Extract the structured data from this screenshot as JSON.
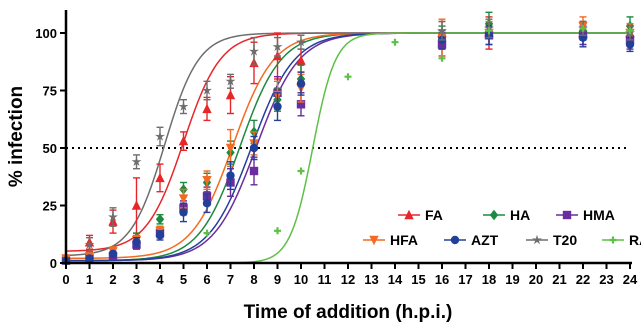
{
  "chart_data": {
    "type": "scatter",
    "xlabel": "Time of addition (h.p.i.)",
    "ylabel": "% infection",
    "xlim": [
      0,
      24
    ],
    "ylim": [
      0,
      110
    ],
    "xticks": [
      "0",
      "1",
      "2",
      "3",
      "4",
      "5",
      "6",
      "7",
      "8",
      "9",
      "10",
      "11",
      "12",
      "13",
      "14",
      "15",
      "16",
      "17",
      "18",
      "19",
      "20",
      "21",
      "22",
      "23",
      "24"
    ],
    "yticks": [
      "0",
      "25",
      "50",
      "75",
      "100"
    ],
    "reference_line": {
      "y": 50,
      "style": "dotted"
    },
    "legend_position": "bottom-right",
    "series": [
      {
        "name": "FA",
        "color": "#e8262a",
        "marker": "triangle-up",
        "ec50": 5.0,
        "hill": 0.55,
        "bottom": 5,
        "points": [
          {
            "x": 1,
            "y": 9,
            "err": 3
          },
          {
            "x": 2,
            "y": 18,
            "err": 5
          },
          {
            "x": 3,
            "y": 25,
            "err": 12
          },
          {
            "x": 4,
            "y": 37,
            "err": 6
          },
          {
            "x": 5,
            "y": 53,
            "err": 4
          },
          {
            "x": 6,
            "y": 67,
            "err": 5
          },
          {
            "x": 7,
            "y": 73,
            "err": 8
          },
          {
            "x": 8,
            "y": 87,
            "err": 9
          },
          {
            "x": 9,
            "y": 90,
            "err": 10
          },
          {
            "x": 10,
            "y": 88,
            "err": 5
          },
          {
            "x": 16,
            "y": 100,
            "err": 5
          },
          {
            "x": 18,
            "y": 100,
            "err": 7
          },
          {
            "x": 22,
            "y": 100,
            "err": 5
          },
          {
            "x": 24,
            "y": 100,
            "err": 4
          }
        ]
      },
      {
        "name": "HA",
        "color": "#1c8a3f",
        "marker": "diamond",
        "ec50": 7.4,
        "hill": 0.5,
        "bottom": 1,
        "points": [
          {
            "x": 0,
            "y": 1,
            "err": 1
          },
          {
            "x": 1,
            "y": 2,
            "err": 1
          },
          {
            "x": 2,
            "y": 4,
            "err": 2
          },
          {
            "x": 3,
            "y": 11,
            "err": 2
          },
          {
            "x": 4,
            "y": 19,
            "err": 2
          },
          {
            "x": 5,
            "y": 32,
            "err": 3
          },
          {
            "x": 6,
            "y": 35,
            "err": 4
          },
          {
            "x": 7,
            "y": 48,
            "err": 5
          },
          {
            "x": 8,
            "y": 57,
            "err": 5
          },
          {
            "x": 9,
            "y": 71,
            "err": 5
          },
          {
            "x": 10,
            "y": 80,
            "err": 6
          },
          {
            "x": 16,
            "y": 98,
            "err": 5
          },
          {
            "x": 18,
            "y": 104,
            "err": 5
          },
          {
            "x": 22,
            "y": 101,
            "err": 4
          },
          {
            "x": 24,
            "y": 103,
            "err": 4
          }
        ]
      },
      {
        "name": "HMA",
        "color": "#6a2c9e",
        "marker": "square",
        "ec50": 8.1,
        "hill": 0.48,
        "bottom": 1,
        "points": [
          {
            "x": 0,
            "y": 1,
            "err": 1
          },
          {
            "x": 1,
            "y": 2,
            "err": 1
          },
          {
            "x": 2,
            "y": 3,
            "err": 1
          },
          {
            "x": 3,
            "y": 8,
            "err": 2
          },
          {
            "x": 4,
            "y": 13,
            "err": 2
          },
          {
            "x": 5,
            "y": 24,
            "err": 3
          },
          {
            "x": 6,
            "y": 29,
            "err": 4
          },
          {
            "x": 7,
            "y": 35,
            "err": 6
          },
          {
            "x": 8,
            "y": 40,
            "err": 6
          },
          {
            "x": 9,
            "y": 74,
            "err": 7
          },
          {
            "x": 10,
            "y": 69,
            "err": 5
          },
          {
            "x": 16,
            "y": 95,
            "err": 5
          },
          {
            "x": 18,
            "y": 99,
            "err": 4
          },
          {
            "x": 22,
            "y": 99,
            "err": 4
          },
          {
            "x": 24,
            "y": 97,
            "err": 4
          }
        ]
      },
      {
        "name": "HFA",
        "color": "#f26b22",
        "marker": "triangle-down",
        "ec50": 7.1,
        "hill": 0.5,
        "bottom": 2,
        "points": [
          {
            "x": 0,
            "y": 2,
            "err": 1
          },
          {
            "x": 1,
            "y": 3,
            "err": 1
          },
          {
            "x": 2,
            "y": 5,
            "err": 2
          },
          {
            "x": 3,
            "y": 10,
            "err": 2
          },
          {
            "x": 4,
            "y": 14,
            "err": 2
          },
          {
            "x": 5,
            "y": 28,
            "err": 4
          },
          {
            "x": 6,
            "y": 36,
            "err": 4
          },
          {
            "x": 7,
            "y": 50,
            "err": 8
          },
          {
            "x": 8,
            "y": 52,
            "err": 5
          },
          {
            "x": 9,
            "y": 73,
            "err": 6
          },
          {
            "x": 10,
            "y": 76,
            "err": 6
          },
          {
            "x": 16,
            "y": 98,
            "err": 8
          },
          {
            "x": 18,
            "y": 100,
            "err": 5
          },
          {
            "x": 22,
            "y": 103,
            "err": 4
          },
          {
            "x": 24,
            "y": 100,
            "err": 4
          }
        ]
      },
      {
        "name": "AZT",
        "color": "#22409a",
        "marker": "circle",
        "ec50": 7.9,
        "hill": 0.48,
        "bottom": 1,
        "points": [
          {
            "x": 0,
            "y": 1,
            "err": 1
          },
          {
            "x": 1,
            "y": 2,
            "err": 1
          },
          {
            "x": 2,
            "y": 4,
            "err": 1
          },
          {
            "x": 3,
            "y": 9,
            "err": 2
          },
          {
            "x": 4,
            "y": 12,
            "err": 2
          },
          {
            "x": 5,
            "y": 22,
            "err": 4
          },
          {
            "x": 6,
            "y": 26,
            "err": 4
          },
          {
            "x": 7,
            "y": 38,
            "err": 6
          },
          {
            "x": 8,
            "y": 50,
            "err": 5
          },
          {
            "x": 9,
            "y": 68,
            "err": 6
          },
          {
            "x": 10,
            "y": 78,
            "err": 5
          },
          {
            "x": 16,
            "y": 97,
            "err": 4
          },
          {
            "x": 18,
            "y": 99,
            "err": 4
          },
          {
            "x": 22,
            "y": 98,
            "err": 4
          },
          {
            "x": 24,
            "y": 95,
            "err": 3
          }
        ]
      },
      {
        "name": "T20",
        "color": "#6e6e6e",
        "marker": "star",
        "ec50": 4.2,
        "hill": 0.6,
        "bottom": 3,
        "points": [
          {
            "x": 1,
            "y": 8,
            "err": 3
          },
          {
            "x": 2,
            "y": 20,
            "err": 4
          },
          {
            "x": 3,
            "y": 44,
            "err": 3
          },
          {
            "x": 4,
            "y": 55,
            "err": 4
          },
          {
            "x": 5,
            "y": 68,
            "err": 3
          },
          {
            "x": 6,
            "y": 75,
            "err": 4
          },
          {
            "x": 7,
            "y": 79,
            "err": 3
          },
          {
            "x": 8,
            "y": 92,
            "err": 6
          },
          {
            "x": 9,
            "y": 94,
            "err": 4
          },
          {
            "x": 10,
            "y": 96,
            "err": 3
          },
          {
            "x": 16,
            "y": 101,
            "err": 4
          },
          {
            "x": 18,
            "y": 102,
            "err": 4
          },
          {
            "x": 22,
            "y": 102,
            "err": 3
          },
          {
            "x": 24,
            "y": 100,
            "err": 3
          }
        ]
      },
      {
        "name": "RAL",
        "color": "#5ec046",
        "marker": "plus",
        "ec50": 10.5,
        "hill": 0.9,
        "bottom": 0,
        "points": [
          {
            "x": 6,
            "y": 13,
            "err": 0
          },
          {
            "x": 9,
            "y": 14,
            "err": 0
          },
          {
            "x": 10,
            "y": 40,
            "err": 0
          },
          {
            "x": 12,
            "y": 81,
            "err": 0
          },
          {
            "x": 14,
            "y": 96,
            "err": 0
          },
          {
            "x": 16,
            "y": 89,
            "err": 0
          },
          {
            "x": 18,
            "y": 101,
            "err": 0
          },
          {
            "x": 22,
            "y": 102,
            "err": 0
          },
          {
            "x": 24,
            "y": 101,
            "err": 0
          }
        ]
      }
    ]
  }
}
